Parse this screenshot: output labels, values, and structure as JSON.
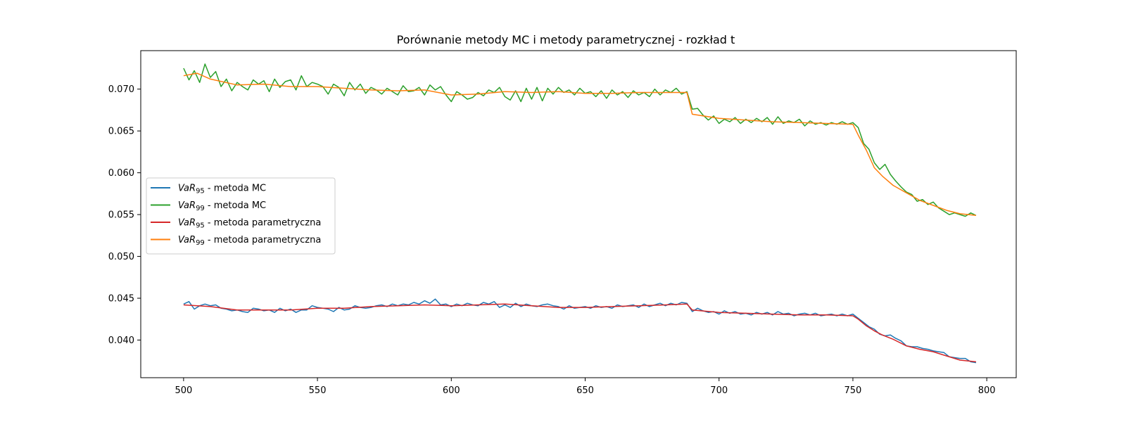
{
  "chart_data": {
    "type": "line",
    "title": "Porównanie metody MC i metody parametrycznej - rozkład t",
    "xlabel": "",
    "ylabel": "",
    "xlim": [
      484,
      811
    ],
    "ylim": [
      0.0355,
      0.0746
    ],
    "x_ticks": [
      500,
      550,
      600,
      650,
      700,
      750,
      800
    ],
    "y_ticks": [
      0.04,
      0.045,
      0.05,
      0.055,
      0.06,
      0.065,
      0.07
    ],
    "x_tick_labels": [
      "500",
      "550",
      "600",
      "650",
      "700",
      "750",
      "800"
    ],
    "y_tick_labels": [
      "0.040",
      "0.045",
      "0.050",
      "0.055",
      "0.060",
      "0.065",
      "0.070"
    ],
    "grid": false,
    "legend_position": "center-left",
    "series": [
      {
        "name": "VaR95 - metoda MC",
        "name_var": "VaR",
        "name_sub": "95",
        "name_rest": " - metoda MC",
        "color": "#1f77b4",
        "x": [
          500,
          502,
          504,
          506,
          508,
          510,
          512,
          514,
          516,
          518,
          520,
          522,
          524,
          526,
          528,
          530,
          532,
          534,
          536,
          538,
          540,
          542,
          544,
          546,
          548,
          550,
          552,
          554,
          556,
          558,
          560,
          562,
          564,
          566,
          568,
          570,
          572,
          574,
          576,
          578,
          580,
          582,
          584,
          586,
          588,
          590,
          592,
          594,
          596,
          598,
          600,
          602,
          604,
          606,
          608,
          610,
          612,
          614,
          616,
          618,
          620,
          622,
          624,
          626,
          628,
          630,
          632,
          634,
          636,
          638,
          640,
          642,
          644,
          646,
          648,
          650,
          652,
          654,
          656,
          658,
          660,
          662,
          664,
          666,
          668,
          670,
          672,
          674,
          676,
          678,
          680,
          682,
          684,
          686,
          688,
          690,
          692,
          694,
          696,
          698,
          700,
          702,
          704,
          706,
          708,
          710,
          712,
          714,
          716,
          718,
          720,
          722,
          724,
          726,
          728,
          730,
          732,
          734,
          736,
          738,
          740,
          742,
          744,
          746,
          748,
          750,
          752,
          754,
          756,
          758,
          760,
          762,
          764,
          766,
          768,
          770,
          772,
          774,
          776,
          778,
          780,
          782,
          784,
          786,
          788,
          790,
          792,
          794,
          796
        ],
        "values": [
          0.0443,
          0.0446,
          0.0437,
          0.0441,
          0.0443,
          0.0441,
          0.0442,
          0.0438,
          0.0437,
          0.0435,
          0.0436,
          0.0434,
          0.0433,
          0.0438,
          0.0437,
          0.0435,
          0.0436,
          0.0433,
          0.0438,
          0.0435,
          0.0437,
          0.0433,
          0.0436,
          0.0436,
          0.0441,
          0.0439,
          0.0438,
          0.0437,
          0.0434,
          0.0439,
          0.0436,
          0.0437,
          0.0441,
          0.0439,
          0.0438,
          0.0439,
          0.0441,
          0.0442,
          0.044,
          0.0443,
          0.0441,
          0.0443,
          0.0442,
          0.0445,
          0.0443,
          0.0447,
          0.0444,
          0.0449,
          0.0442,
          0.0443,
          0.044,
          0.0443,
          0.0441,
          0.0444,
          0.0442,
          0.0441,
          0.0445,
          0.0443,
          0.0446,
          0.0439,
          0.0442,
          0.0439,
          0.0444,
          0.044,
          0.0443,
          0.0441,
          0.044,
          0.0442,
          0.0443,
          0.0441,
          0.044,
          0.0437,
          0.0441,
          0.0438,
          0.0439,
          0.044,
          0.0438,
          0.0441,
          0.0439,
          0.044,
          0.0438,
          0.0442,
          0.044,
          0.0441,
          0.0442,
          0.0439,
          0.0443,
          0.044,
          0.0442,
          0.0444,
          0.0441,
          0.0444,
          0.0442,
          0.0445,
          0.0444,
          0.0434,
          0.0438,
          0.0435,
          0.0433,
          0.0434,
          0.0431,
          0.0435,
          0.0432,
          0.0434,
          0.0431,
          0.0432,
          0.043,
          0.0433,
          0.0431,
          0.0433,
          0.043,
          0.0434,
          0.0431,
          0.0432,
          0.0429,
          0.0431,
          0.0432,
          0.043,
          0.0432,
          0.0429,
          0.043,
          0.0431,
          0.0429,
          0.0431,
          0.0429,
          0.0431,
          0.0426,
          0.0421,
          0.0416,
          0.0413,
          0.0407,
          0.0405,
          0.0406,
          0.0402,
          0.0399,
          0.0393,
          0.0392,
          0.0392,
          0.039,
          0.0389,
          0.0387,
          0.0386,
          0.0385,
          0.038,
          0.0379,
          0.0378,
          0.0378,
          0.0374,
          0.0373
        ]
      },
      {
        "name": "VaR99 - metoda MC",
        "name_var": "VaR",
        "name_sub": "99",
        "name_rest": " - metoda MC",
        "color": "#2ca02c",
        "x": [
          500,
          502,
          504,
          506,
          508,
          510,
          512,
          514,
          516,
          518,
          520,
          522,
          524,
          526,
          528,
          530,
          532,
          534,
          536,
          538,
          540,
          542,
          544,
          546,
          548,
          550,
          552,
          554,
          556,
          558,
          560,
          562,
          564,
          566,
          568,
          570,
          572,
          574,
          576,
          578,
          580,
          582,
          584,
          586,
          588,
          590,
          592,
          594,
          596,
          598,
          600,
          602,
          604,
          606,
          608,
          610,
          612,
          614,
          616,
          618,
          620,
          622,
          624,
          626,
          628,
          630,
          632,
          634,
          636,
          638,
          640,
          642,
          644,
          646,
          648,
          650,
          652,
          654,
          656,
          658,
          660,
          662,
          664,
          666,
          668,
          670,
          672,
          674,
          676,
          678,
          680,
          682,
          684,
          686,
          688,
          690,
          692,
          694,
          696,
          698,
          700,
          702,
          704,
          706,
          708,
          710,
          712,
          714,
          716,
          718,
          720,
          722,
          724,
          726,
          728,
          730,
          732,
          734,
          736,
          738,
          740,
          742,
          744,
          746,
          748,
          750,
          752,
          754,
          756,
          758,
          760,
          762,
          764,
          766,
          768,
          770,
          772,
          774,
          776,
          778,
          780,
          782,
          784,
          786,
          788,
          790,
          792,
          794,
          796
        ],
        "values": [
          0.0725,
          0.0711,
          0.0722,
          0.0708,
          0.073,
          0.0714,
          0.0721,
          0.0703,
          0.0712,
          0.0698,
          0.0708,
          0.0703,
          0.0699,
          0.0711,
          0.0706,
          0.071,
          0.0697,
          0.0712,
          0.0702,
          0.0709,
          0.0711,
          0.0699,
          0.0716,
          0.0703,
          0.0708,
          0.0706,
          0.0703,
          0.0694,
          0.0706,
          0.0702,
          0.0692,
          0.0708,
          0.0699,
          0.0706,
          0.0695,
          0.0702,
          0.0699,
          0.0694,
          0.0701,
          0.0697,
          0.0693,
          0.0704,
          0.0697,
          0.0698,
          0.0702,
          0.0693,
          0.0705,
          0.0699,
          0.0703,
          0.0693,
          0.0685,
          0.0697,
          0.0693,
          0.0688,
          0.069,
          0.0696,
          0.0692,
          0.0699,
          0.0696,
          0.0702,
          0.0691,
          0.0687,
          0.0698,
          0.0685,
          0.0701,
          0.0688,
          0.0702,
          0.0686,
          0.0701,
          0.0694,
          0.0702,
          0.0696,
          0.0699,
          0.0693,
          0.0701,
          0.0695,
          0.0697,
          0.0691,
          0.0698,
          0.0689,
          0.0699,
          0.0693,
          0.0697,
          0.069,
          0.0698,
          0.0693,
          0.0696,
          0.0691,
          0.07,
          0.0693,
          0.0699,
          0.0696,
          0.0701,
          0.0694,
          0.0697,
          0.0676,
          0.0677,
          0.0669,
          0.0663,
          0.0668,
          0.0659,
          0.0664,
          0.0661,
          0.0666,
          0.0659,
          0.0664,
          0.066,
          0.0665,
          0.0661,
          0.0666,
          0.0658,
          0.0667,
          0.0659,
          0.0662,
          0.066,
          0.0664,
          0.0656,
          0.0662,
          0.0658,
          0.066,
          0.0657,
          0.066,
          0.0658,
          0.0661,
          0.0658,
          0.066,
          0.0654,
          0.0635,
          0.0628,
          0.0612,
          0.0604,
          0.061,
          0.0598,
          0.059,
          0.0583,
          0.0577,
          0.0574,
          0.0566,
          0.0568,
          0.0562,
          0.0565,
          0.0558,
          0.0554,
          0.055,
          0.0552,
          0.055,
          0.0548,
          0.0552,
          0.0549
        ]
      },
      {
        "name": "VaR95 - metoda parametryczna",
        "name_var": "VaR",
        "name_sub": "95",
        "name_rest": " - metoda parametryczna",
        "color": "#d62728",
        "x": [
          500,
          510,
          520,
          530,
          540,
          550,
          560,
          570,
          580,
          590,
          600,
          610,
          620,
          630,
          640,
          650,
          660,
          670,
          680,
          688,
          690,
          700,
          710,
          720,
          730,
          740,
          750,
          752,
          755,
          758,
          761,
          765,
          770,
          775,
          780,
          785,
          790,
          796
        ],
        "values": [
          0.0442,
          0.044,
          0.0436,
          0.0436,
          0.0436,
          0.0438,
          0.0438,
          0.044,
          0.0441,
          0.0442,
          0.0441,
          0.0442,
          0.0443,
          0.0441,
          0.0439,
          0.0439,
          0.044,
          0.0441,
          0.0442,
          0.0443,
          0.0436,
          0.0433,
          0.0432,
          0.0431,
          0.043,
          0.043,
          0.0429,
          0.0425,
          0.0417,
          0.0411,
          0.0406,
          0.0401,
          0.0393,
          0.0389,
          0.0386,
          0.0381,
          0.0376,
          0.0374
        ]
      },
      {
        "name": "VaR99 - metoda parametryczna",
        "name_var": "VaR",
        "name_sub": "99",
        "name_rest": " - metoda parametryczna",
        "color": "#ff7f0e",
        "x": [
          500,
          505,
          510,
          520,
          530,
          540,
          550,
          560,
          570,
          580,
          590,
          600,
          610,
          620,
          630,
          640,
          650,
          660,
          670,
          680,
          688,
          690,
          700,
          710,
          720,
          730,
          740,
          750,
          752,
          755,
          758,
          761,
          765,
          770,
          775,
          780,
          785,
          790,
          796
        ],
        "values": [
          0.0716,
          0.0719,
          0.0712,
          0.0705,
          0.0706,
          0.0703,
          0.0703,
          0.0701,
          0.0699,
          0.0698,
          0.0699,
          0.0693,
          0.0694,
          0.0697,
          0.0696,
          0.0697,
          0.0695,
          0.0695,
          0.0696,
          0.0696,
          0.0696,
          0.067,
          0.0665,
          0.0663,
          0.0661,
          0.066,
          0.0659,
          0.0658,
          0.0645,
          0.0627,
          0.0606,
          0.0596,
          0.0585,
          0.0576,
          0.0567,
          0.0561,
          0.0555,
          0.0551,
          0.0549
        ]
      }
    ]
  }
}
